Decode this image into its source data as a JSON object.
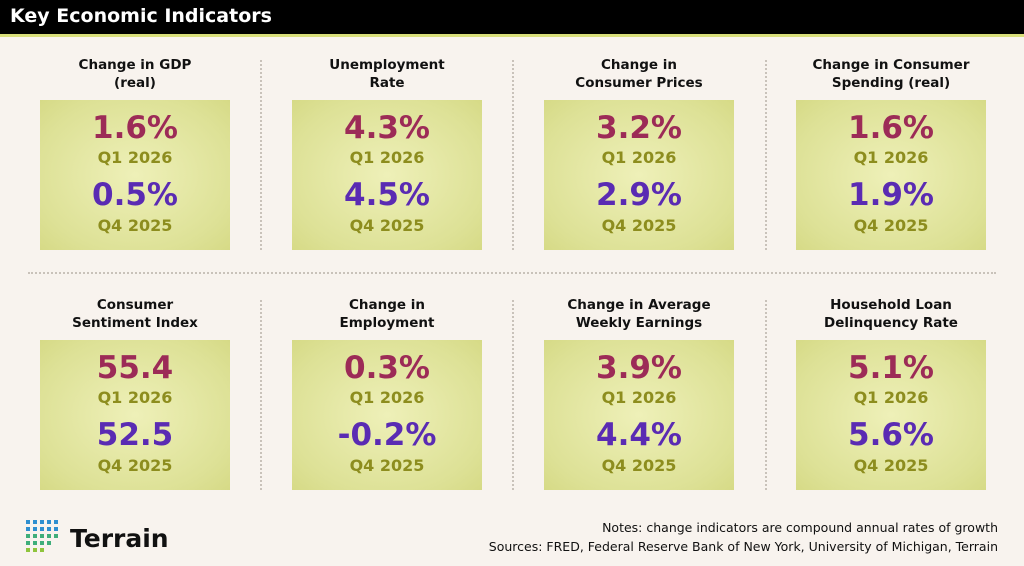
{
  "header": {
    "title": "Key Economic Indicators"
  },
  "cards": [
    {
      "title_lines": [
        "Change in GDP",
        "(real)"
      ],
      "current": {
        "value": "1.6%",
        "period": "Q1 2026"
      },
      "prior": {
        "value": "0.5%",
        "period": "Q4 2025"
      }
    },
    {
      "title_lines": [
        "Unemployment",
        "Rate"
      ],
      "current": {
        "value": "4.3%",
        "period": "Q1 2026"
      },
      "prior": {
        "value": "4.5%",
        "period": "Q4 2025"
      }
    },
    {
      "title_lines": [
        "Change in",
        "Consumer Prices"
      ],
      "current": {
        "value": "3.2%",
        "period": "Q1 2026"
      },
      "prior": {
        "value": "2.9%",
        "period": "Q4 2025"
      }
    },
    {
      "title_lines": [
        "Change in Consumer",
        "Spending (real)"
      ],
      "current": {
        "value": "1.6%",
        "period": "Q1 2026"
      },
      "prior": {
        "value": "1.9%",
        "period": "Q4 2025"
      }
    },
    {
      "title_lines": [
        "Consumer",
        "Sentiment Index"
      ],
      "current": {
        "value": "55.4",
        "period": "Q1 2026"
      },
      "prior": {
        "value": "52.5",
        "period": "Q4 2025"
      }
    },
    {
      "title_lines": [
        "Change in",
        "Employment"
      ],
      "current": {
        "value": "0.3%",
        "period": "Q1 2026"
      },
      "prior": {
        "value": "-0.2%",
        "period": "Q4 2025"
      }
    },
    {
      "title_lines": [
        "Change in Average",
        "Weekly Earnings"
      ],
      "current": {
        "value": "3.9%",
        "period": "Q1 2026"
      },
      "prior": {
        "value": "4.4%",
        "period": "Q4 2025"
      }
    },
    {
      "title_lines": [
        "Household Loan",
        "Delinquency Rate"
      ],
      "current": {
        "value": "5.1%",
        "period": "Q1 2026"
      },
      "prior": {
        "value": "5.6%",
        "period": "Q4 2025"
      }
    }
  ],
  "footer": {
    "logo": "Terrain",
    "notes": "Notes: change indicators are compound annual rates of growth",
    "sources": "Sources: FRED, Federal Reserve Bank of New York, University of Michigan, Terrain"
  }
}
